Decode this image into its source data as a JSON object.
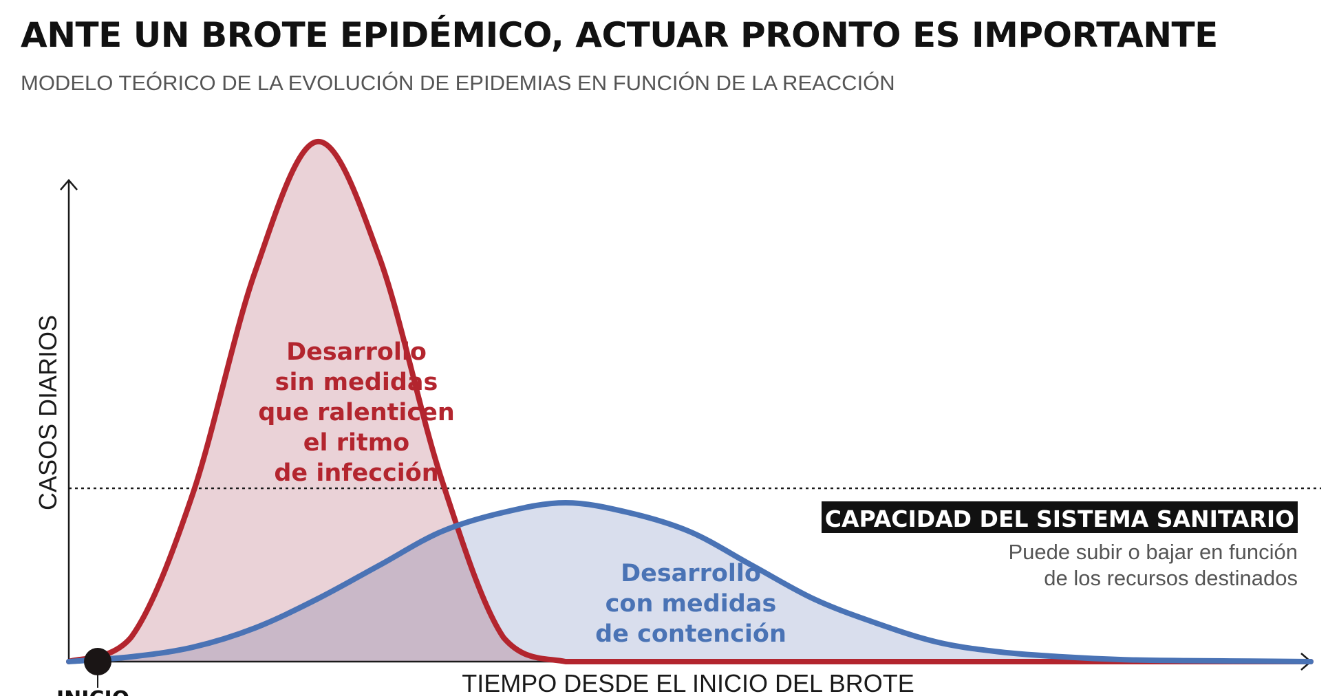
{
  "header": {
    "title": "ANTE UN BROTE EPIDÉMICO, ACTUAR PRONTO ES IMPORTANTE",
    "subtitle": "MODELO TEÓRICO DE LA EVOLUCIÓN DE EPIDEMIAS EN FUNCIÓN DE LA REACCIÓN"
  },
  "colors": {
    "red": "#b3252e",
    "red_fill": "#ead2d7",
    "blue": "#4a73b5",
    "blue_fill": "#d7dcec",
    "overlap_fill": "#c9b8c8",
    "axis": "#1a1a1a"
  },
  "chart_data": {
    "type": "area",
    "title": "ANTE UN BROTE EPIDÉMICO, ACTUAR PRONTO ES IMPORTANTE",
    "xlabel": "TIEMPO DESDE EL INICIO DEL BROTE",
    "ylabel": "CASOS DIARIOS",
    "ticks": "none",
    "xlim": [
      0,
      100
    ],
    "ylim": [
      0,
      100
    ],
    "x": [
      0,
      5,
      10,
      15,
      20,
      25,
      30,
      35,
      40,
      45,
      50,
      55,
      60,
      65,
      70,
      75,
      80,
      85,
      90,
      95,
      100
    ],
    "series": [
      {
        "name": "Desarrollo sin medidas que ralenticen el ritmo de infección",
        "values": [
          0,
          5,
          35,
          81,
          108,
          84,
          38,
          5,
          0,
          0,
          0,
          0,
          0,
          0,
          0,
          0,
          0,
          0,
          0,
          0,
          0
        ]
      },
      {
        "name": "Desarrollo con medidas de contención",
        "values": [
          0,
          1,
          3,
          7,
          13,
          20,
          27,
          31,
          33,
          31,
          27,
          20,
          13,
          8,
          4,
          2,
          1,
          0.4,
          0.2,
          0.1,
          0
        ]
      }
    ],
    "threshold": {
      "label": "CAPACIDAD DEL SISTEMA SANITARIO",
      "value": 36,
      "style": "dotted"
    },
    "annotations": {
      "red_lines": [
        "Desarrollo",
        "sin medidas",
        "que ralenticen",
        "el ritmo",
        "de infección"
      ],
      "blue_lines": [
        "Desarrollo",
        "con medidas",
        "de contención"
      ],
      "capacity_note": [
        "Puede subir o bajar en función",
        "de los recursos destinados"
      ],
      "start_label": "INICIO"
    }
  }
}
